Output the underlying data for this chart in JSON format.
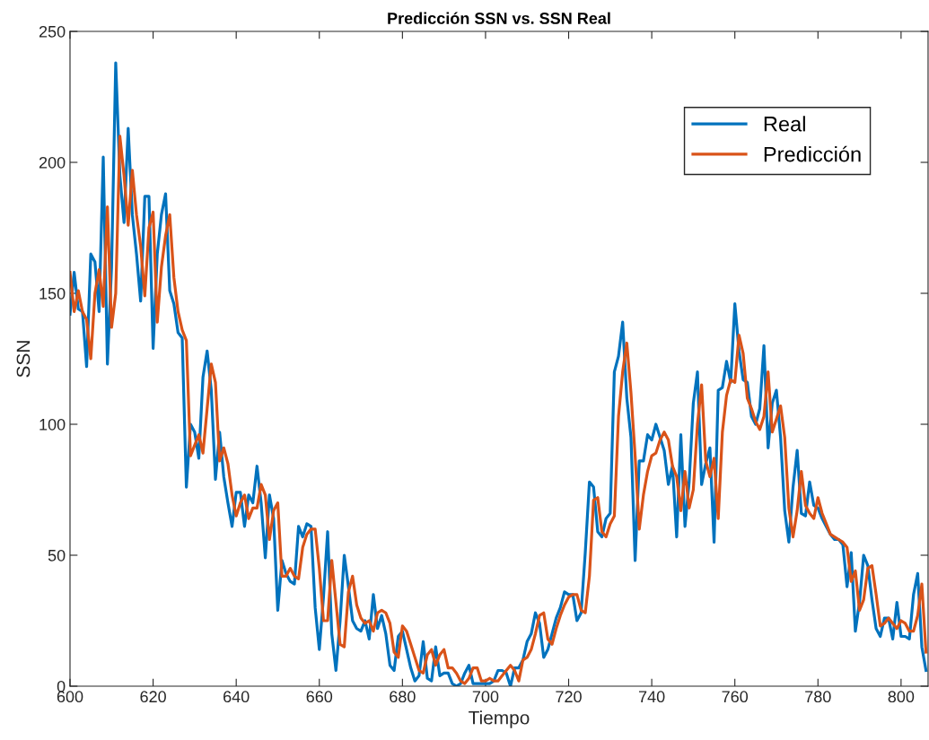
{
  "chart_data": {
    "type": "line",
    "title": "Predicción SSN vs. SSN Real",
    "xlabel": "Tiempo",
    "ylabel": "SSN",
    "x": [
      600,
      601,
      602,
      603,
      604,
      605,
      606,
      607,
      608,
      609,
      610,
      611,
      612,
      613,
      614,
      615,
      616,
      617,
      618,
      619,
      620,
      621,
      622,
      623,
      624,
      625,
      626,
      627,
      628,
      629,
      630,
      631,
      632,
      633,
      634,
      635,
      636,
      637,
      638,
      639,
      640,
      641,
      642,
      643,
      644,
      645,
      646,
      647,
      648,
      649,
      650,
      651,
      652,
      653,
      654,
      655,
      656,
      657,
      658,
      659,
      660,
      661,
      662,
      663,
      664,
      665,
      666,
      667,
      668,
      669,
      670,
      671,
      672,
      673,
      674,
      675,
      676,
      677,
      678,
      679,
      680,
      681,
      682,
      683,
      684,
      685,
      686,
      687,
      688,
      689,
      690,
      691,
      692,
      693,
      694,
      695,
      696,
      697,
      698,
      699,
      700,
      701,
      702,
      703,
      704,
      705,
      706,
      707,
      708,
      709,
      710,
      711,
      712,
      713,
      714,
      715,
      716,
      717,
      718,
      719,
      720,
      721,
      722,
      723,
      724,
      725,
      726,
      727,
      728,
      729,
      730,
      731,
      732,
      733,
      734,
      735,
      736,
      737,
      738,
      739,
      740,
      741,
      742,
      743,
      744,
      745,
      746,
      747,
      748,
      749,
      750,
      751,
      752,
      753,
      754,
      755,
      756,
      757,
      758,
      759,
      760,
      761,
      762,
      763,
      764,
      765,
      766,
      767,
      768,
      769,
      770,
      771,
      772,
      773,
      774,
      775,
      776,
      777,
      778,
      779,
      780,
      781,
      782,
      783,
      784,
      785,
      786,
      787,
      788,
      789,
      790,
      791,
      792,
      793,
      794,
      795,
      796,
      797,
      798,
      799,
      800,
      801,
      802,
      803,
      804,
      805,
      806
    ],
    "series": [
      {
        "name": "Real",
        "color": "#0072bd",
        "values": [
          142,
          158,
          144,
          143,
          122,
          165,
          162,
          143,
          202,
          123,
          160,
          238,
          195,
          177,
          213,
          180,
          165,
          147,
          187,
          187,
          129,
          165,
          180,
          188,
          151,
          146,
          135,
          133,
          76,
          100,
          97,
          87,
          118,
          128,
          113,
          79,
          97,
          80,
          70,
          61,
          74,
          74,
          61,
          73,
          70,
          84,
          70,
          49,
          73,
          64,
          29,
          48,
          43,
          40,
          39,
          61,
          57,
          62,
          61,
          30,
          14,
          34,
          59,
          20,
          6,
          25,
          50,
          38,
          25,
          22,
          21,
          25,
          18,
          35,
          22,
          27,
          20,
          8,
          6,
          19,
          21,
          14,
          7,
          2,
          4,
          17,
          3,
          2,
          15,
          4,
          5,
          5,
          1,
          0,
          1,
          5,
          8,
          1,
          1,
          1,
          1,
          1,
          2,
          6,
          6,
          5,
          0,
          7,
          7,
          10,
          17,
          20,
          28,
          24,
          11,
          14,
          20,
          26,
          30,
          36,
          35,
          35,
          25,
          28,
          51,
          78,
          76,
          59,
          57,
          64,
          66,
          120,
          126,
          139,
          110,
          95,
          48,
          86,
          86,
          96,
          94,
          100,
          95,
          90,
          77,
          84,
          57,
          96,
          61,
          78,
          108,
          120,
          77,
          85,
          91,
          55,
          113,
          114,
          124,
          116,
          146,
          128,
          117,
          116,
          103,
          100,
          106,
          130,
          91,
          108,
          113,
          95,
          67,
          55,
          76,
          90,
          66,
          65,
          78,
          69,
          68,
          64,
          61,
          58,
          56,
          56,
          54,
          38,
          51,
          21,
          32,
          50,
          46,
          33,
          22,
          19,
          26,
          26,
          18,
          32,
          19,
          19,
          18,
          35,
          43,
          15,
          6
        ]
      },
      {
        "name": "Predicción",
        "color": "#d95319",
        "values": [
          158,
          143,
          151,
          143,
          140,
          125,
          150,
          159,
          145,
          183,
          137,
          150,
          210,
          195,
          176,
          197,
          180,
          168,
          149,
          175,
          181,
          139,
          160,
          172,
          180,
          156,
          143,
          136,
          132,
          88,
          92,
          96,
          89,
          106,
          123,
          116,
          86,
          91,
          85,
          73,
          65,
          70,
          73,
          64,
          68,
          68,
          77,
          73,
          56,
          67,
          70,
          42,
          42,
          45,
          42,
          41,
          53,
          58,
          60,
          60,
          45,
          25,
          25,
          48,
          32,
          16,
          15,
          36,
          42,
          31,
          26,
          24,
          25,
          21,
          28,
          29,
          28,
          24,
          13,
          11,
          23,
          21,
          16,
          11,
          6,
          5,
          12,
          14,
          8,
          12,
          14,
          7,
          7,
          5,
          2,
          1,
          3,
          7,
          7,
          2,
          2,
          3,
          2,
          2,
          4,
          6,
          8,
          6,
          2,
          10,
          11,
          14,
          20,
          27,
          28,
          18,
          16,
          22,
          27,
          31,
          34,
          35,
          35,
          29,
          28,
          42,
          71,
          72,
          59,
          57,
          62,
          65,
          103,
          120,
          131,
          112,
          88,
          60,
          73,
          82,
          88,
          89,
          94,
          97,
          94,
          84,
          80,
          67,
          82,
          68,
          75,
          100,
          115,
          86,
          80,
          87,
          64,
          97,
          111,
          117,
          116,
          134,
          127,
          110,
          106,
          101,
          98,
          103,
          120,
          97,
          102,
          107,
          95,
          68,
          57,
          67,
          82,
          69,
          66,
          64,
          72,
          66,
          62,
          58,
          57,
          56,
          55,
          53,
          40,
          44,
          29,
          33,
          45,
          46,
          35,
          23,
          24,
          26,
          24,
          22,
          25,
          24,
          21,
          21,
          27,
          39,
          13
        ]
      }
    ],
    "xlim": [
      600,
      806.5
    ],
    "ylim": [
      0,
      250
    ],
    "xticks": [
      600,
      620,
      640,
      660,
      680,
      700,
      720,
      740,
      760,
      780,
      800
    ],
    "yticks": [
      0,
      50,
      100,
      150,
      200,
      250
    ],
    "legend": "top right",
    "grid": false,
    "marker": "none",
    "line_style": "solid"
  }
}
